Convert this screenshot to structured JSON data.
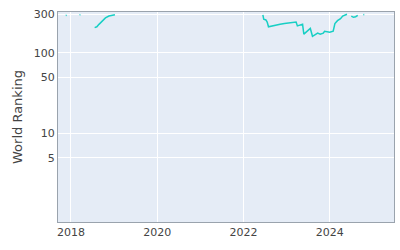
{
  "chart_data": {
    "type": "line",
    "y_label": "World Ranking",
    "log": "y",
    "grid": true,
    "color": "#17cfc4",
    "x": [
      2017.88,
      2017.9,
      2017.95,
      2018.2,
      2018.22,
      2018.3,
      2018.55,
      2018.6,
      2018.65,
      2018.7,
      2018.75,
      2018.8,
      2018.88,
      2018.95,
      2019.02,
      2020,
      2022.45,
      2022.47,
      2022.52,
      2022.55,
      2022.58,
      2022.65,
      2022.75,
      2022.85,
      2022.95,
      2023.05,
      2023.15,
      2023.22,
      2023.25,
      2023.3,
      2023.37,
      2023.4,
      2023.45,
      2023.52,
      2023.55,
      2023.6,
      2023.65,
      2023.72,
      2023.78,
      2023.85,
      2023.88,
      2023.95,
      2024.0,
      2024.08,
      2024.12,
      2024.18,
      2024.25,
      2024.3,
      2024.35,
      2024.4,
      2024.43,
      2024.5,
      2024.55,
      2024.6,
      2024.65,
      2024.7,
      2024.78,
      2024.8
    ],
    "values": [
      290,
      292,
      null,
      295,
      296,
      null,
      205,
      210,
      225,
      240,
      255,
      270,
      285,
      292,
      295,
      null,
      295,
      260,
      255,
      240,
      210,
      215,
      220,
      225,
      230,
      235,
      235,
      240,
      215,
      220,
      225,
      170,
      180,
      190,
      200,
      160,
      165,
      175,
      170,
      175,
      185,
      180,
      180,
      185,
      230,
      250,
      265,
      285,
      295,
      300,
      null,
      285,
      275,
      280,
      290,
      null,
      296,
      297
    ],
    "xlim": [
      2017.7,
      2025.49
    ],
    "xticks": [
      2018,
      2020,
      2022,
      2024
    ],
    "ylim": [
      0.8,
      320
    ],
    "yticks": [
      5,
      10,
      50,
      100,
      300
    ]
  }
}
